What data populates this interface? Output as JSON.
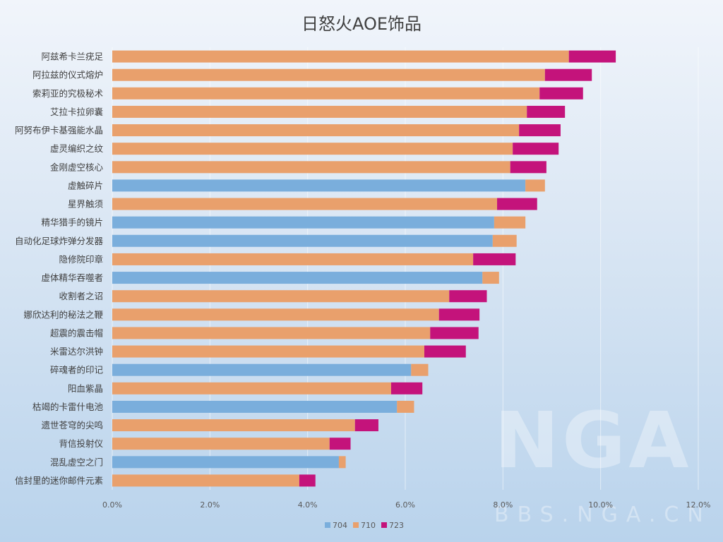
{
  "chart_data": {
    "type": "bar",
    "orientation": "horizontal",
    "stacked": true,
    "title": "日怒火AOE饰品",
    "categories": [
      "阿兹希卡兰疣足",
      "阿拉兹的仪式熔炉",
      "索莉亚的究极秘术",
      "艾拉卡拉卵囊",
      "阿努布伊卡基强能水晶",
      "虚灵编织之纹",
      "金刚虚空核心",
      "虚触碎片",
      "星界触须",
      "精华猎手的镜片",
      "自动化足球炸弹分发器",
      "隐修院印章",
      "虚体精华吞噬者",
      "收割者之诏",
      "娜欣达利的秘法之鞭",
      "超震的震击帽",
      "米雷达尔洪钟",
      "碎魂者的印记",
      "阳血紫晶",
      "枯竭的卡雷什电池",
      "遗世苍穹的尖鸣",
      "背信投射仪",
      "混乱虚空之门",
      "信封里的迷你邮件元素"
    ],
    "series": [
      {
        "name": "704",
        "color": "#7aaedc",
        "values": [
          0,
          0,
          0,
          0,
          0,
          0,
          0,
          8.46,
          0,
          7.82,
          7.79,
          0,
          7.58,
          0,
          0,
          0,
          0,
          6.12,
          0,
          5.83,
          0,
          0,
          4.64,
          0
        ]
      },
      {
        "name": "710",
        "color": "#e9a06c",
        "values": [
          9.35,
          8.86,
          8.75,
          8.49,
          8.33,
          8.2,
          8.15,
          0.4,
          7.88,
          0.64,
          0.49,
          7.39,
          0.34,
          6.9,
          6.69,
          6.51,
          6.39,
          0.35,
          5.71,
          0.35,
          4.97,
          4.45,
          0.14,
          3.83
        ]
      },
      {
        "name": "723",
        "color": "#c4137b",
        "values": [
          0.96,
          0.96,
          0.89,
          0.78,
          0.85,
          0.94,
          0.74,
          0,
          0.82,
          0,
          0,
          0.87,
          0,
          0.77,
          0.83,
          0.99,
          0.85,
          0,
          0.64,
          0,
          0.48,
          0.43,
          0,
          0.33
        ]
      }
    ],
    "xlim": [
      0,
      12
    ],
    "xticks": [
      "0.0%",
      "2.0%",
      "4.0%",
      "6.0%",
      "8.0%",
      "10.0%",
      "12.0%"
    ],
    "grid": true,
    "legend_position": "bottom"
  },
  "watermark": {
    "logo": "NGA",
    "site": "BBS.NGA.CN"
  }
}
